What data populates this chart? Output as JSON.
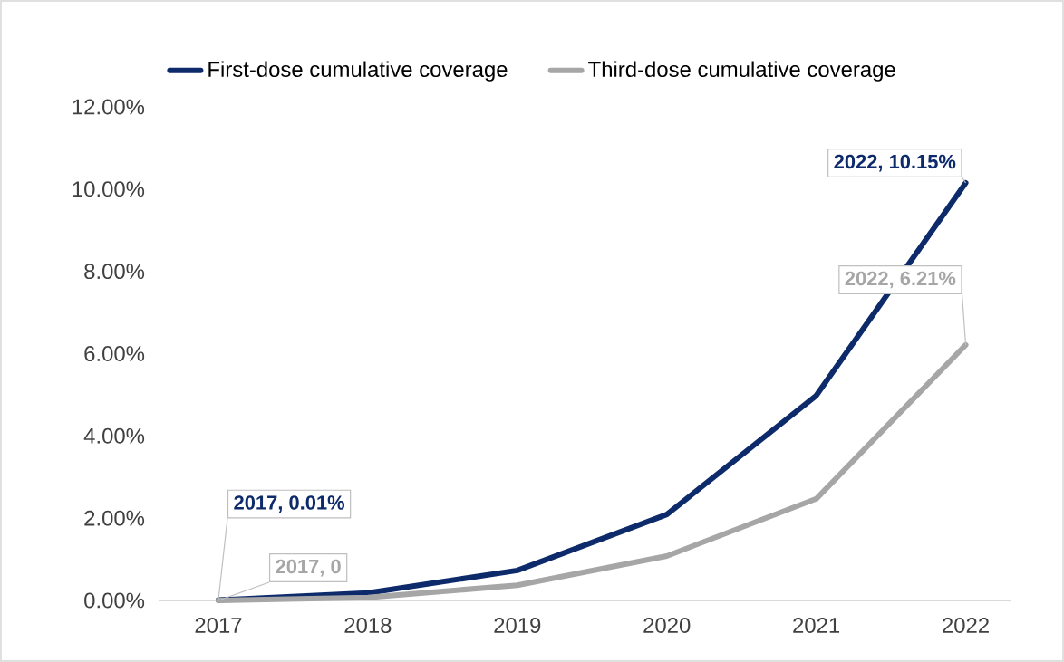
{
  "chart_data": {
    "type": "line",
    "categories": [
      "2017",
      "2018",
      "2019",
      "2020",
      "2021",
      "2022"
    ],
    "series": [
      {
        "name": "First-dose cumulative coverage",
        "color": "#0d2a6b",
        "values": [
          0.01,
          0.18,
          0.73,
          2.09,
          4.98,
          10.15
        ],
        "value_labels": [
          "2017, 0.01%",
          null,
          null,
          null,
          null,
          "2022, 10.15%"
        ]
      },
      {
        "name": "Third-dose cumulative coverage",
        "color": "#a6a6a6",
        "values": [
          0,
          0.07,
          0.37,
          1.08,
          2.47,
          6.21
        ],
        "value_labels": [
          "2017, 0",
          null,
          null,
          null,
          null,
          "2022, 6.21%"
        ]
      }
    ],
    "ylim": [
      0,
      12
    ],
    "yticks": [
      {
        "value": 0,
        "label": "0.00%"
      },
      {
        "value": 2,
        "label": "2.00%"
      },
      {
        "value": 4,
        "label": "4.00%"
      },
      {
        "value": 6,
        "label": "6.00%"
      },
      {
        "value": 8,
        "label": "8.00%"
      },
      {
        "value": 10,
        "label": "10.00%"
      },
      {
        "value": 12,
        "label": "12.00%"
      }
    ],
    "legend": "top",
    "marker": "none",
    "line_style": "solid"
  }
}
